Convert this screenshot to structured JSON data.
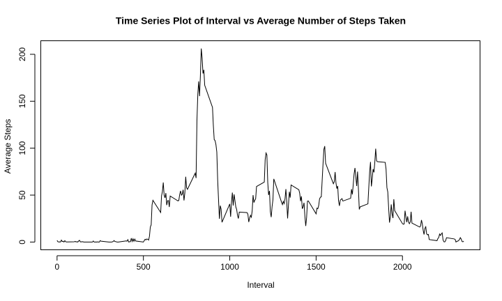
{
  "chart_data": {
    "type": "line",
    "title": "Time Series Plot of Interval vs Average Number of Steps Taken",
    "x_label": "Interval",
    "y_label": "Average Steps",
    "xlim": [
      -94.2,
      2449.2
    ],
    "xticks": [
      0,
      500,
      1000,
      1500,
      2000
    ],
    "ylim": [
      -8.25,
      214.42
    ],
    "yticks": [
      0,
      50,
      100,
      150,
      200
    ],
    "grid": false,
    "series": [
      {
        "color": "#000000",
        "x": [
          0,
          5,
          10,
          15,
          20,
          25,
          30,
          35,
          40,
          45,
          50,
          55,
          100,
          105,
          110,
          115,
          120,
          125,
          130,
          135,
          140,
          145,
          150,
          155,
          200,
          205,
          210,
          215,
          220,
          225,
          230,
          235,
          240,
          245,
          250,
          255,
          300,
          305,
          310,
          315,
          320,
          325,
          330,
          335,
          340,
          345,
          350,
          355,
          400,
          405,
          410,
          415,
          420,
          425,
          430,
          435,
          440,
          445,
          450,
          455,
          500,
          505,
          510,
          515,
          520,
          525,
          530,
          535,
          540,
          545,
          550,
          555,
          600,
          605,
          610,
          615,
          620,
          625,
          630,
          635,
          640,
          645,
          650,
          655,
          700,
          705,
          710,
          715,
          720,
          725,
          730,
          735,
          740,
          745,
          750,
          755,
          800,
          805,
          810,
          815,
          820,
          825,
          830,
          835,
          840,
          845,
          850,
          855,
          900,
          905,
          910,
          915,
          920,
          925,
          930,
          935,
          940,
          945,
          950,
          955,
          1000,
          1005,
          1010,
          1015,
          1020,
          1025,
          1030,
          1035,
          1040,
          1045,
          1050,
          1055,
          1100,
          1105,
          1110,
          1115,
          1120,
          1125,
          1130,
          1135,
          1140,
          1145,
          1150,
          1155,
          1200,
          1205,
          1210,
          1215,
          1220,
          1225,
          1230,
          1235,
          1240,
          1245,
          1250,
          1255,
          1300,
          1305,
          1310,
          1315,
          1320,
          1325,
          1330,
          1335,
          1340,
          1345,
          1350,
          1355,
          1400,
          1405,
          1410,
          1415,
          1420,
          1425,
          1430,
          1435,
          1440,
          1445,
          1450,
          1455,
          1500,
          1505,
          1510,
          1515,
          1520,
          1525,
          1530,
          1535,
          1540,
          1545,
          1550,
          1555,
          1600,
          1605,
          1610,
          1615,
          1620,
          1625,
          1630,
          1635,
          1640,
          1645,
          1650,
          1655,
          1700,
          1705,
          1710,
          1715,
          1720,
          1725,
          1730,
          1735,
          1740,
          1745,
          1750,
          1755,
          1800,
          1805,
          1810,
          1815,
          1820,
          1825,
          1830,
          1835,
          1840,
          1845,
          1850,
          1855,
          1900,
          1905,
          1910,
          1915,
          1920,
          1925,
          1930,
          1935,
          1940,
          1945,
          1950,
          1955,
          2000,
          2005,
          2010,
          2015,
          2020,
          2025,
          2030,
          2035,
          2040,
          2045,
          2050,
          2055,
          2100,
          2105,
          2110,
          2115,
          2120,
          2125,
          2130,
          2135,
          2140,
          2145,
          2150,
          2155,
          2200,
          2205,
          2210,
          2215,
          2220,
          2225,
          2230,
          2235,
          2240,
          2245,
          2250,
          2255,
          2300,
          2305,
          2310,
          2315,
          2320,
          2325,
          2330,
          2335,
          2340,
          2345,
          2350,
          2355
        ],
        "values": [
          1.72,
          0.34,
          0.13,
          0.15,
          0.08,
          2.09,
          0.53,
          0.87,
          0,
          1.47,
          0.3,
          0.13,
          0.32,
          0.68,
          0.15,
          0.34,
          0,
          1.11,
          1.83,
          0.17,
          0.17,
          0.38,
          0.26,
          0,
          0,
          0,
          1.13,
          0,
          0,
          0.13,
          0,
          0.23,
          0,
          0,
          1.55,
          0.94,
          0,
          0,
          0,
          0,
          0.21,
          0.62,
          1.62,
          0.58,
          0.49,
          0.08,
          0,
          0,
          1.19,
          0.94,
          2.57,
          0,
          0.34,
          0.36,
          4.11,
          0.66,
          3.49,
          0.83,
          3.11,
          1.11,
          0,
          1.57,
          3.0,
          2.25,
          3.32,
          2.96,
          2.09,
          6.06,
          16.0,
          18.3,
          39.45,
          44.49,
          31.49,
          49.26,
          53.77,
          63.45,
          49.96,
          47.08,
          52.15,
          39.34,
          44.02,
          44.17,
          37.36,
          49.04,
          43.81,
          44.38,
          50.51,
          54.51,
          49.92,
          50.98,
          55.68,
          44.32,
          52.26,
          69.55,
          57.85,
          56.15,
          73.38,
          68.21,
          129.43,
          157.53,
          171.15,
          155.4,
          177.3,
          206.17,
          195.92,
          179.57,
          183.4,
          167.02,
          143.45,
          124.04,
          109.11,
          108.11,
          103.72,
          95.96,
          66.21,
          45.23,
          24.79,
          38.75,
          34.98,
          21.06,
          40.57,
          26.98,
          42.42,
          52.66,
          38.92,
          50.79,
          44.28,
          37.42,
          34.7,
          28.34,
          25.09,
          31.94,
          31.36,
          29.68,
          21.32,
          25.55,
          28.38,
          26.47,
          33.43,
          49.98,
          42.04,
          44.6,
          46.04,
          59.19,
          63.87,
          87.7,
          94.85,
          92.77,
          63.4,
          50.17,
          54.47,
          32.42,
          26.53,
          37.74,
          45.06,
          67.28,
          42.34,
          39.88,
          43.26,
          40.98,
          46.25,
          56.43,
          42.75,
          25.13,
          39.96,
          53.55,
          47.32,
          60.81,
          55.75,
          51.96,
          43.58,
          48.7,
          35.47,
          37.55,
          41.85,
          27.51,
          17.11,
          26.08,
          43.62,
          43.77,
          30.02,
          36.08,
          35.49,
          38.85,
          45.96,
          47.75,
          48.13,
          65.32,
          82.91,
          98.66,
          102.11,
          83.96,
          62.13,
          64.13,
          74.55,
          63.17,
          56.91,
          59.77,
          43.87,
          38.57,
          44.66,
          45.45,
          46.21,
          43.68,
          46.62,
          56.3,
          50.72,
          61.23,
          72.72,
          78.94,
          68.94,
          59.66,
          75.09,
          56.51,
          34.77,
          37.45,
          40.68,
          58.02,
          74.7,
          85.32,
          59.26,
          67.77,
          77.7,
          74.25,
          85.34,
          99.45,
          86.58,
          85.6,
          84.87,
          77.83,
          58.04,
          53.36,
          36.33,
          20.72,
          27.4,
          40.02,
          30.21,
          25.55,
          45.66,
          33.53,
          19.62,
          19.02,
          19.34,
          33.34,
          26.81,
          21.17,
          27.3,
          21.34,
          19.55,
          21.32,
          32.3,
          20.15,
          15.94,
          17.23,
          23.45,
          19.25,
          12.45,
          8.02,
          14.66,
          16.3,
          8.68,
          7.79,
          8.13,
          2.62,
          1.45,
          3.68,
          4.81,
          8.51,
          7.08,
          8.7,
          9.75,
          2.21,
          0.32,
          0.11,
          1.6,
          4.6,
          3.3,
          2.85,
          0,
          0.83,
          0.96,
          1.58,
          2.6,
          4.7,
          3.3,
          0.64,
          0.23,
          1.08
        ]
      }
    ]
  }
}
